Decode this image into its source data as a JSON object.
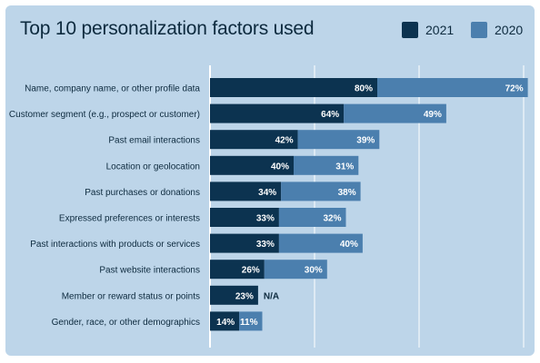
{
  "colors": {
    "s2021": "#0c3350",
    "s2020": "#4b7fae",
    "background": "#bdd5e9",
    "grid": "#ffffff"
  },
  "chart_data": {
    "type": "bar",
    "orientation": "horizontal",
    "stacked_segments": true,
    "title": "Top 10 personalization factors used",
    "categories": [
      "Name, company name, or other profile data",
      "Customer segment (e.g., prospect or customer)",
      "Past email interactions",
      "Location or geolocation",
      "Past purchases or donations",
      "Expressed preferences or interests",
      "Past interactions with products or services",
      "Past website interactions",
      "Member or reward status or points",
      "Gender, race, or other demographics"
    ],
    "series": [
      {
        "name": "2021",
        "values": [
          80,
          64,
          42,
          40,
          34,
          33,
          33,
          26,
          23,
          14
        ],
        "labels": [
          "80%",
          "64%",
          "42%",
          "40%",
          "34%",
          "33%",
          "33%",
          "26%",
          "23%",
          "14%"
        ]
      },
      {
        "name": "2020",
        "values": [
          72,
          49,
          39,
          31,
          38,
          32,
          40,
          30,
          null,
          11
        ],
        "labels": [
          "72%",
          "49%",
          "39%",
          "31%",
          "38%",
          "32%",
          "40%",
          "30%",
          "N/A",
          "11%"
        ]
      }
    ],
    "xlim": [
      0,
      150
    ],
    "grid": true,
    "legend_position": "top-right"
  }
}
